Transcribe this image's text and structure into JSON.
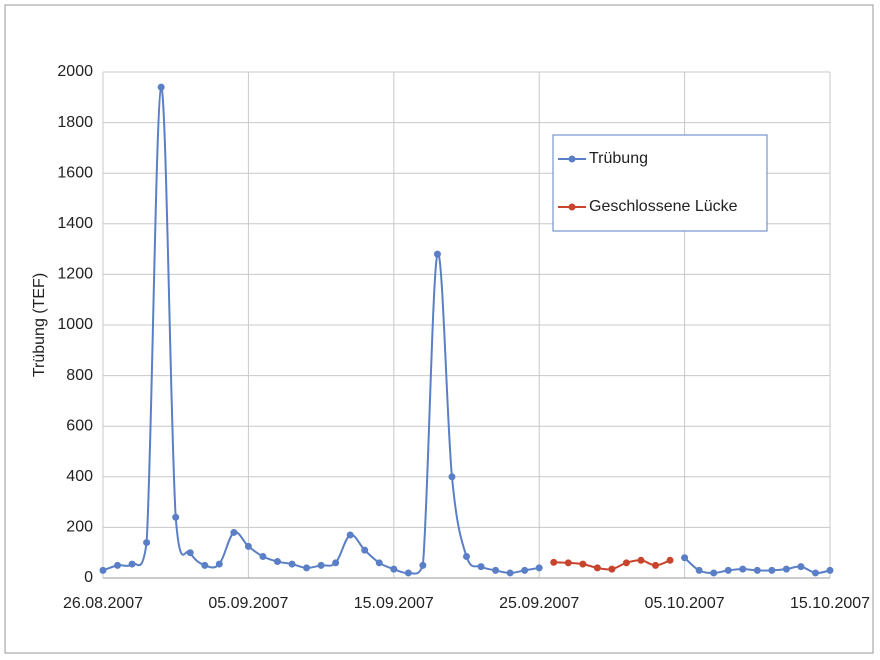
{
  "chart_data": {
    "type": "line",
    "y_label": "Trübung (TEF)",
    "x": [
      "26.08.2007",
      "27.08.2007",
      "28.08.2007",
      "29.08.2007",
      "30.08.2007",
      "31.08.2007",
      "01.09.2007",
      "02.09.2007",
      "03.09.2007",
      "04.09.2007",
      "05.09.2007",
      "06.09.2007",
      "07.09.2007",
      "08.09.2007",
      "09.09.2007",
      "10.09.2007",
      "11.09.2007",
      "12.09.2007",
      "13.09.2007",
      "14.09.2007",
      "15.09.2007",
      "16.09.2007",
      "17.09.2007",
      "18.09.2007",
      "19.09.2007",
      "20.09.2007",
      "21.09.2007",
      "22.09.2007",
      "23.09.2007",
      "24.09.2007",
      "25.09.2007",
      "26.09.2007",
      "27.09.2007",
      "28.09.2007",
      "29.09.2007",
      "30.09.2007",
      "01.10.2007",
      "02.10.2007",
      "03.10.2007",
      "04.10.2007",
      "05.10.2007",
      "06.10.2007",
      "07.10.2007",
      "08.10.2007",
      "09.10.2007",
      "10.10.2007",
      "11.10.2007",
      "12.10.2007",
      "13.10.2007",
      "14.10.2007",
      "15.10.2007"
    ],
    "series": [
      {
        "name": "Trübung",
        "color": "#5b7fc6",
        "values": [
          30,
          50,
          55,
          140,
          1940,
          240,
          100,
          50,
          55,
          180,
          125,
          85,
          65,
          55,
          40,
          50,
          60,
          170,
          110,
          60,
          35,
          20,
          50,
          1280,
          400,
          85,
          45,
          30,
          20,
          30,
          40,
          null,
          null,
          null,
          null,
          null,
          null,
          null,
          null,
          null,
          80,
          30,
          20,
          30,
          35,
          30,
          30,
          35,
          45,
          20,
          30
        ]
      },
      {
        "name": "Geschlossene Lücke",
        "color": "#c8442c",
        "values": [
          null,
          null,
          null,
          null,
          null,
          null,
          null,
          null,
          null,
          null,
          null,
          null,
          null,
          null,
          null,
          null,
          null,
          null,
          null,
          null,
          null,
          null,
          null,
          null,
          null,
          null,
          null,
          null,
          null,
          null,
          null,
          62,
          60,
          55,
          40,
          35,
          60,
          70,
          50,
          70,
          null,
          null,
          null,
          null,
          null,
          null,
          null,
          null,
          null,
          null,
          null
        ]
      }
    ],
    "xlim": [
      "26.08.2007",
      "15.10.2007"
    ],
    "xticks": [
      "26.08.2007",
      "05.09.2007",
      "15.09.2007",
      "25.09.2007",
      "05.10.2007",
      "15.10.2007"
    ],
    "ylim": [
      0,
      2000
    ],
    "yticks": [
      0,
      200,
      400,
      600,
      800,
      1000,
      1200,
      1400,
      1600,
      1800,
      2000
    ],
    "grid": true,
    "legend": "upper right"
  }
}
